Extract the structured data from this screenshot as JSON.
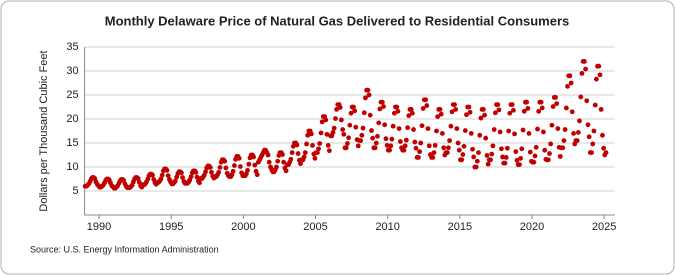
{
  "chart_data": {
    "type": "scatter",
    "title": "Monthly Delaware Price of Natural Gas Delivered to Residential Consumers",
    "y_label": "Dollars per Thousand Cubic Feet",
    "source": "Source: U.S. Energy Information Administration",
    "color": "#c00000",
    "grid": true,
    "xlim": [
      1989,
      2025.75
    ],
    "xticks": [
      1990,
      1995,
      2000,
      2005,
      2010,
      2015,
      2020,
      2025
    ],
    "ylim": [
      0,
      35
    ],
    "yticks": [
      5,
      10,
      15,
      20,
      25,
      30,
      35
    ],
    "x": [
      1989.04,
      1989.13,
      1989.21,
      1989.29,
      1989.38,
      1989.46,
      1989.54,
      1989.63,
      1989.71,
      1989.79,
      1989.88,
      1989.96,
      1990.04,
      1990.13,
      1990.21,
      1990.29,
      1990.38,
      1990.46,
      1990.54,
      1990.63,
      1990.71,
      1990.79,
      1990.88,
      1990.96,
      1991.04,
      1991.13,
      1991.21,
      1991.29,
      1991.38,
      1991.46,
      1991.54,
      1991.63,
      1991.71,
      1991.79,
      1991.88,
      1991.96,
      1992.04,
      1992.13,
      1992.21,
      1992.29,
      1992.38,
      1992.46,
      1992.54,
      1992.63,
      1992.71,
      1992.79,
      1992.88,
      1992.96,
      1993.04,
      1993.13,
      1993.21,
      1993.29,
      1993.38,
      1993.46,
      1993.54,
      1993.63,
      1993.71,
      1993.79,
      1993.88,
      1993.96,
      1994.04,
      1994.13,
      1994.21,
      1994.29,
      1994.38,
      1994.46,
      1994.54,
      1994.63,
      1994.71,
      1994.79,
      1994.88,
      1994.96,
      1995.04,
      1995.13,
      1995.21,
      1995.29,
      1995.38,
      1995.46,
      1995.54,
      1995.63,
      1995.71,
      1995.79,
      1995.88,
      1995.96,
      1996.04,
      1996.13,
      1996.21,
      1996.29,
      1996.38,
      1996.46,
      1996.54,
      1996.63,
      1996.71,
      1996.79,
      1996.88,
      1996.96,
      1997.04,
      1997.13,
      1997.21,
      1997.29,
      1997.38,
      1997.46,
      1997.54,
      1997.63,
      1997.71,
      1997.79,
      1997.88,
      1997.96,
      1998.04,
      1998.13,
      1998.21,
      1998.29,
      1998.38,
      1998.46,
      1998.54,
      1998.63,
      1998.71,
      1998.79,
      1998.88,
      1998.96,
      1999.04,
      1999.13,
      1999.21,
      1999.29,
      1999.38,
      1999.46,
      1999.54,
      1999.63,
      1999.71,
      1999.79,
      1999.88,
      1999.96,
      2000.04,
      2000.13,
      2000.21,
      2000.29,
      2000.38,
      2000.46,
      2000.54,
      2000.63,
      2000.71,
      2000.79,
      2000.88,
      2000.96,
      2001.04,
      2001.13,
      2001.21,
      2001.29,
      2001.38,
      2001.46,
      2001.54,
      2001.63,
      2001.71,
      2001.79,
      2001.88,
      2001.96,
      2002.04,
      2002.13,
      2002.21,
      2002.29,
      2002.38,
      2002.46,
      2002.54,
      2002.63,
      2002.71,
      2002.79,
      2002.88,
      2002.96,
      2003.04,
      2003.13,
      2003.21,
      2003.29,
      2003.38,
      2003.46,
      2003.54,
      2003.63,
      2003.71,
      2003.79,
      2003.88,
      2003.96,
      2004.04,
      2004.13,
      2004.21,
      2004.29,
      2004.38,
      2004.46,
      2004.54,
      2004.63,
      2004.71,
      2004.79,
      2004.88,
      2004.96,
      2005.04,
      2005.13,
      2005.21,
      2005.29,
      2005.38,
      2005.46,
      2005.54,
      2005.63,
      2005.71,
      2005.79,
      2005.88,
      2005.96,
      2006.04,
      2006.13,
      2006.21,
      2006.29,
      2006.38,
      2006.46,
      2006.54,
      2006.63,
      2006.71,
      2006.79,
      2006.88,
      2006.96,
      2007.04,
      2007.13,
      2007.21,
      2007.29,
      2007.38,
      2007.46,
      2007.54,
      2007.63,
      2007.71,
      2007.79,
      2007.88,
      2007.96,
      2008.04,
      2008.13,
      2008.21,
      2008.29,
      2008.38,
      2008.46,
      2008.54,
      2008.63,
      2008.71,
      2008.79,
      2008.88,
      2008.96,
      2009.04,
      2009.13,
      2009.21,
      2009.29,
      2009.38,
      2009.46,
      2009.54,
      2009.63,
      2009.71,
      2009.79,
      2009.88,
      2009.96,
      2010.04,
      2010.13,
      2010.21,
      2010.29,
      2010.38,
      2010.46,
      2010.54,
      2010.63,
      2010.71,
      2010.79,
      2010.88,
      2010.96,
      2011.04,
      2011.13,
      2011.21,
      2011.29,
      2011.38,
      2011.46,
      2011.54,
      2011.63,
      2011.71,
      2011.79,
      2011.88,
      2011.96,
      2012.04,
      2012.13,
      2012.21,
      2012.29,
      2012.38,
      2012.46,
      2012.54,
      2012.63,
      2012.71,
      2012.79,
      2012.88,
      2012.96,
      2013.04,
      2013.13,
      2013.21,
      2013.29,
      2013.38,
      2013.46,
      2013.54,
      2013.63,
      2013.71,
      2013.79,
      2013.88,
      2013.96,
      2014.04,
      2014.13,
      2014.21,
      2014.29,
      2014.38,
      2014.46,
      2014.54,
      2014.63,
      2014.71,
      2014.79,
      2014.88,
      2014.96,
      2015.04,
      2015.13,
      2015.21,
      2015.29,
      2015.38,
      2015.46,
      2015.54,
      2015.63,
      2015.71,
      2015.79,
      2015.88,
      2015.96,
      2016.04,
      2016.13,
      2016.21,
      2016.29,
      2016.38,
      2016.46,
      2016.54,
      2016.63,
      2016.71,
      2016.79,
      2016.88,
      2016.96,
      2017.04,
      2017.13,
      2017.21,
      2017.29,
      2017.38,
      2017.46,
      2017.54,
      2017.63,
      2017.71,
      2017.79,
      2017.88,
      2017.96,
      2018.04,
      2018.13,
      2018.21,
      2018.29,
      2018.38,
      2018.46,
      2018.54,
      2018.63,
      2018.71,
      2018.79,
      2018.88,
      2018.96,
      2019.04,
      2019.13,
      2019.21,
      2019.29,
      2019.38,
      2019.46,
      2019.54,
      2019.63,
      2019.71,
      2019.79,
      2019.88,
      2019.96,
      2020.04,
      2020.13,
      2020.21,
      2020.29,
      2020.38,
      2020.46,
      2020.54,
      2020.63,
      2020.71,
      2020.79,
      2020.88,
      2020.96,
      2021.04,
      2021.13,
      2021.21,
      2021.29,
      2021.38,
      2021.46,
      2021.54,
      2021.63,
      2021.71,
      2021.79,
      2021.88,
      2021.96,
      2022.04,
      2022.13,
      2022.21,
      2022.29,
      2022.38,
      2022.46,
      2022.54,
      2022.63,
      2022.71,
      2022.79,
      2022.88,
      2022.96,
      2023.04,
      2023.13,
      2023.21,
      2023.29,
      2023.38,
      2023.46,
      2023.54,
      2023.63,
      2023.71,
      2023.79,
      2023.88,
      2023.96,
      2024.04,
      2024.13,
      2024.21,
      2024.29,
      2024.38,
      2024.46,
      2024.54,
      2024.63,
      2024.71,
      2024.79,
      2024.88,
      2024.96,
      2025.04,
      2025.13
    ],
    "values": [
      6.0,
      6.0,
      6.2,
      6.5,
      7.0,
      7.5,
      7.8,
      7.8,
      7.6,
      6.9,
      6.4,
      6.1,
      5.8,
      5.8,
      6.0,
      6.2,
      6.7,
      7.2,
      7.5,
      7.5,
      7.3,
      6.7,
      6.1,
      5.9,
      5.6,
      5.6,
      5.8,
      6.1,
      6.6,
      7.1,
      7.4,
      7.4,
      7.2,
      6.5,
      6.0,
      5.7,
      5.7,
      5.7,
      5.9,
      6.2,
      6.9,
      7.5,
      7.8,
      7.8,
      7.6,
      6.8,
      6.1,
      5.8,
      6.3,
      6.3,
      6.5,
      6.9,
      7.5,
      8.2,
      8.5,
      8.5,
      8.3,
      7.4,
      6.7,
      6.4,
      6.8,
      6.8,
      7.1,
      7.5,
      8.3,
      9.2,
      9.6,
      9.6,
      9.3,
      8.2,
      7.4,
      6.9,
      6.5,
      6.5,
      6.8,
      7.1,
      7.9,
      8.6,
      9.0,
      9.0,
      8.8,
      7.8,
      7.0,
      6.6,
      6.6,
      6.6,
      6.9,
      7.3,
      8.0,
      8.8,
      9.2,
      9.2,
      8.9,
      7.9,
      7.1,
      6.7,
      7.6,
      7.6,
      7.9,
      8.3,
      9.0,
      9.8,
      10.2,
      10.2,
      9.9,
      8.9,
      8.1,
      7.7,
      8.0,
      8.0,
      8.4,
      8.9,
      9.9,
      11.0,
      11.5,
      11.5,
      11.2,
      9.8,
      8.7,
      8.2,
      8.0,
      8.0,
      8.4,
      9.1,
      10.3,
      11.6,
      12.2,
      12.2,
      11.8,
      10.1,
      8.8,
      8.2,
      8.2,
      8.2,
      8.6,
      9.3,
      10.6,
      11.9,
      12.5,
      12.5,
      12.1,
      10.4,
      9.1,
      8.4,
      11.0,
      11.5,
      12.0,
      12.5,
      13.0,
      13.5,
      13.5,
      13.0,
      12.5,
      11.0,
      10.0,
      9.5,
      9.0,
      9.0,
      9.4,
      10.0,
      11.2,
      12.4,
      13.0,
      13.0,
      12.6,
      11.0,
      9.8,
      9.2,
      10.5,
      10.5,
      11.0,
      11.6,
      13.0,
      14.3,
      15.0,
      15.0,
      14.6,
      12.8,
      11.4,
      10.7,
      11.5,
      11.5,
      12.1,
      13.0,
      14.8,
      16.6,
      17.5,
      17.5,
      16.9,
      14.5,
      12.7,
      11.8,
      13.0,
      13.0,
      13.8,
      14.9,
      17.1,
      19.4,
      20.5,
      20.5,
      19.8,
      16.8,
      14.5,
      13.4,
      16.5,
      16.5,
      17.2,
      18.1,
      20.1,
      22.0,
      23.0,
      23.0,
      22.4,
      19.8,
      17.8,
      16.8,
      14.0,
      14.0,
      14.9,
      16.1,
      18.7,
      21.2,
      22.5,
      22.5,
      21.7,
      18.3,
      15.7,
      14.4,
      15.5,
      15.5,
      16.6,
      18.1,
      21.3,
      24.4,
      26.0,
      26.0,
      25.0,
      20.8,
      17.6,
      16.0,
      14.0,
      14.0,
      15.0,
      16.4,
      19.2,
      22.1,
      23.5,
      23.5,
      22.6,
      18.8,
      15.9,
      14.5,
      13.5,
      13.5,
      14.4,
      15.8,
      18.5,
      21.2,
      22.5,
      22.5,
      21.6,
      18.0,
      15.3,
      14.0,
      13.5,
      13.5,
      14.4,
      15.6,
      18.2,
      20.7,
      22.0,
      22.0,
      21.2,
      17.8,
      15.2,
      13.9,
      12.0,
      12.0,
      13.2,
      15.0,
      18.6,
      22.2,
      24.0,
      24.0,
      22.8,
      18.0,
      14.4,
      12.6,
      12.0,
      12.0,
      13.0,
      14.5,
      17.5,
      20.5,
      22.0,
      22.0,
      21.0,
      17.0,
      14.0,
      12.5,
      13.0,
      13.0,
      14.0,
      15.5,
      18.5,
      21.5,
      23.0,
      23.0,
      22.0,
      18.0,
      15.0,
      13.5,
      11.5,
      11.5,
      12.6,
      14.3,
      17.6,
      20.9,
      22.5,
      22.5,
      21.4,
      17.0,
      13.7,
      12.1,
      10.0,
      10.0,
      11.2,
      13.0,
      16.6,
      20.2,
      22.0,
      22.0,
      20.8,
      16.0,
      12.4,
      10.6,
      11.5,
      11.5,
      12.7,
      14.4,
      17.8,
      21.3,
      23.0,
      23.0,
      21.9,
      17.3,
      13.8,
      12.1,
      10.8,
      10.8,
      12.0,
      13.9,
      17.5,
      21.2,
      23.0,
      23.0,
      21.8,
      16.9,
      13.2,
      11.4,
      10.5,
      10.5,
      11.8,
      13.8,
      17.7,
      21.6,
      23.5,
      23.5,
      22.2,
      17.0,
      13.1,
      11.2,
      11.0,
      11.0,
      12.3,
      14.1,
      17.9,
      21.6,
      23.5,
      23.5,
      22.3,
      17.3,
      13.5,
      11.6,
      11.5,
      11.5,
      12.8,
      14.8,
      18.7,
      22.6,
      24.5,
      24.5,
      23.2,
      18.0,
      14.1,
      12.2,
      14.0,
      14.0,
      15.5,
      17.8,
      22.3,
      26.8,
      29.0,
      29.0,
      27.5,
      21.5,
      17.0,
      14.8,
      15.5,
      15.5,
      17.2,
      19.6,
      24.6,
      29.5,
      32.0,
      32.0,
      30.4,
      23.8,
      18.8,
      16.3,
      13.0,
      13.0,
      14.8,
      17.5,
      22.9,
      28.3,
      31.0,
      31.0,
      29.2,
      22.0,
      16.6,
      13.9,
      12.5,
      13.0
    ]
  }
}
